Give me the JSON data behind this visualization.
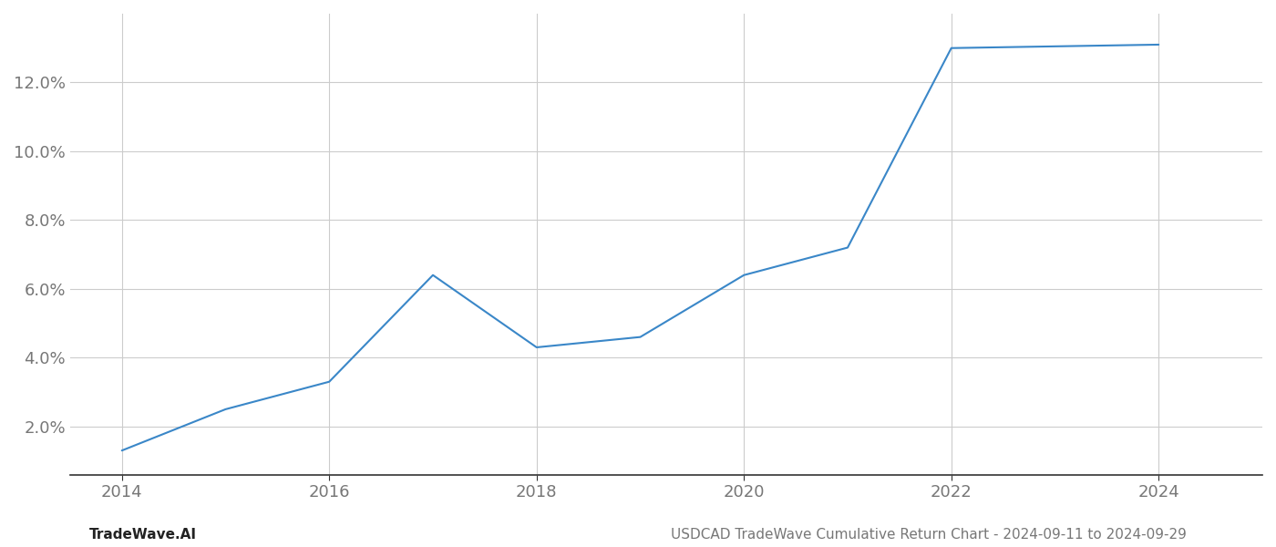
{
  "x_years": [
    2014,
    2015,
    2016,
    2017,
    2018,
    2019,
    2020,
    2021,
    2022,
    2023,
    2024
  ],
  "y_values": [
    1.3,
    2.5,
    3.3,
    6.4,
    4.3,
    4.6,
    6.4,
    7.2,
    13.0,
    13.05,
    13.1
  ],
  "line_color": "#3a87c8",
  "line_width": 1.5,
  "background_color": "#ffffff",
  "grid_color": "#cccccc",
  "xlim": [
    2013.5,
    2025.0
  ],
  "ylim": [
    0.6,
    14.0
  ],
  "yticks": [
    2.0,
    4.0,
    6.0,
    8.0,
    10.0,
    12.0
  ],
  "xticks": [
    2014,
    2016,
    2018,
    2020,
    2022,
    2024
  ],
  "footer_left": "TradeWave.AI",
  "footer_right": "USDCAD TradeWave Cumulative Return Chart - 2024-09-11 to 2024-09-29",
  "footer_fontsize": 11,
  "tick_fontsize": 13,
  "axis_color": "#777777",
  "bottom_spine_color": "#333333"
}
